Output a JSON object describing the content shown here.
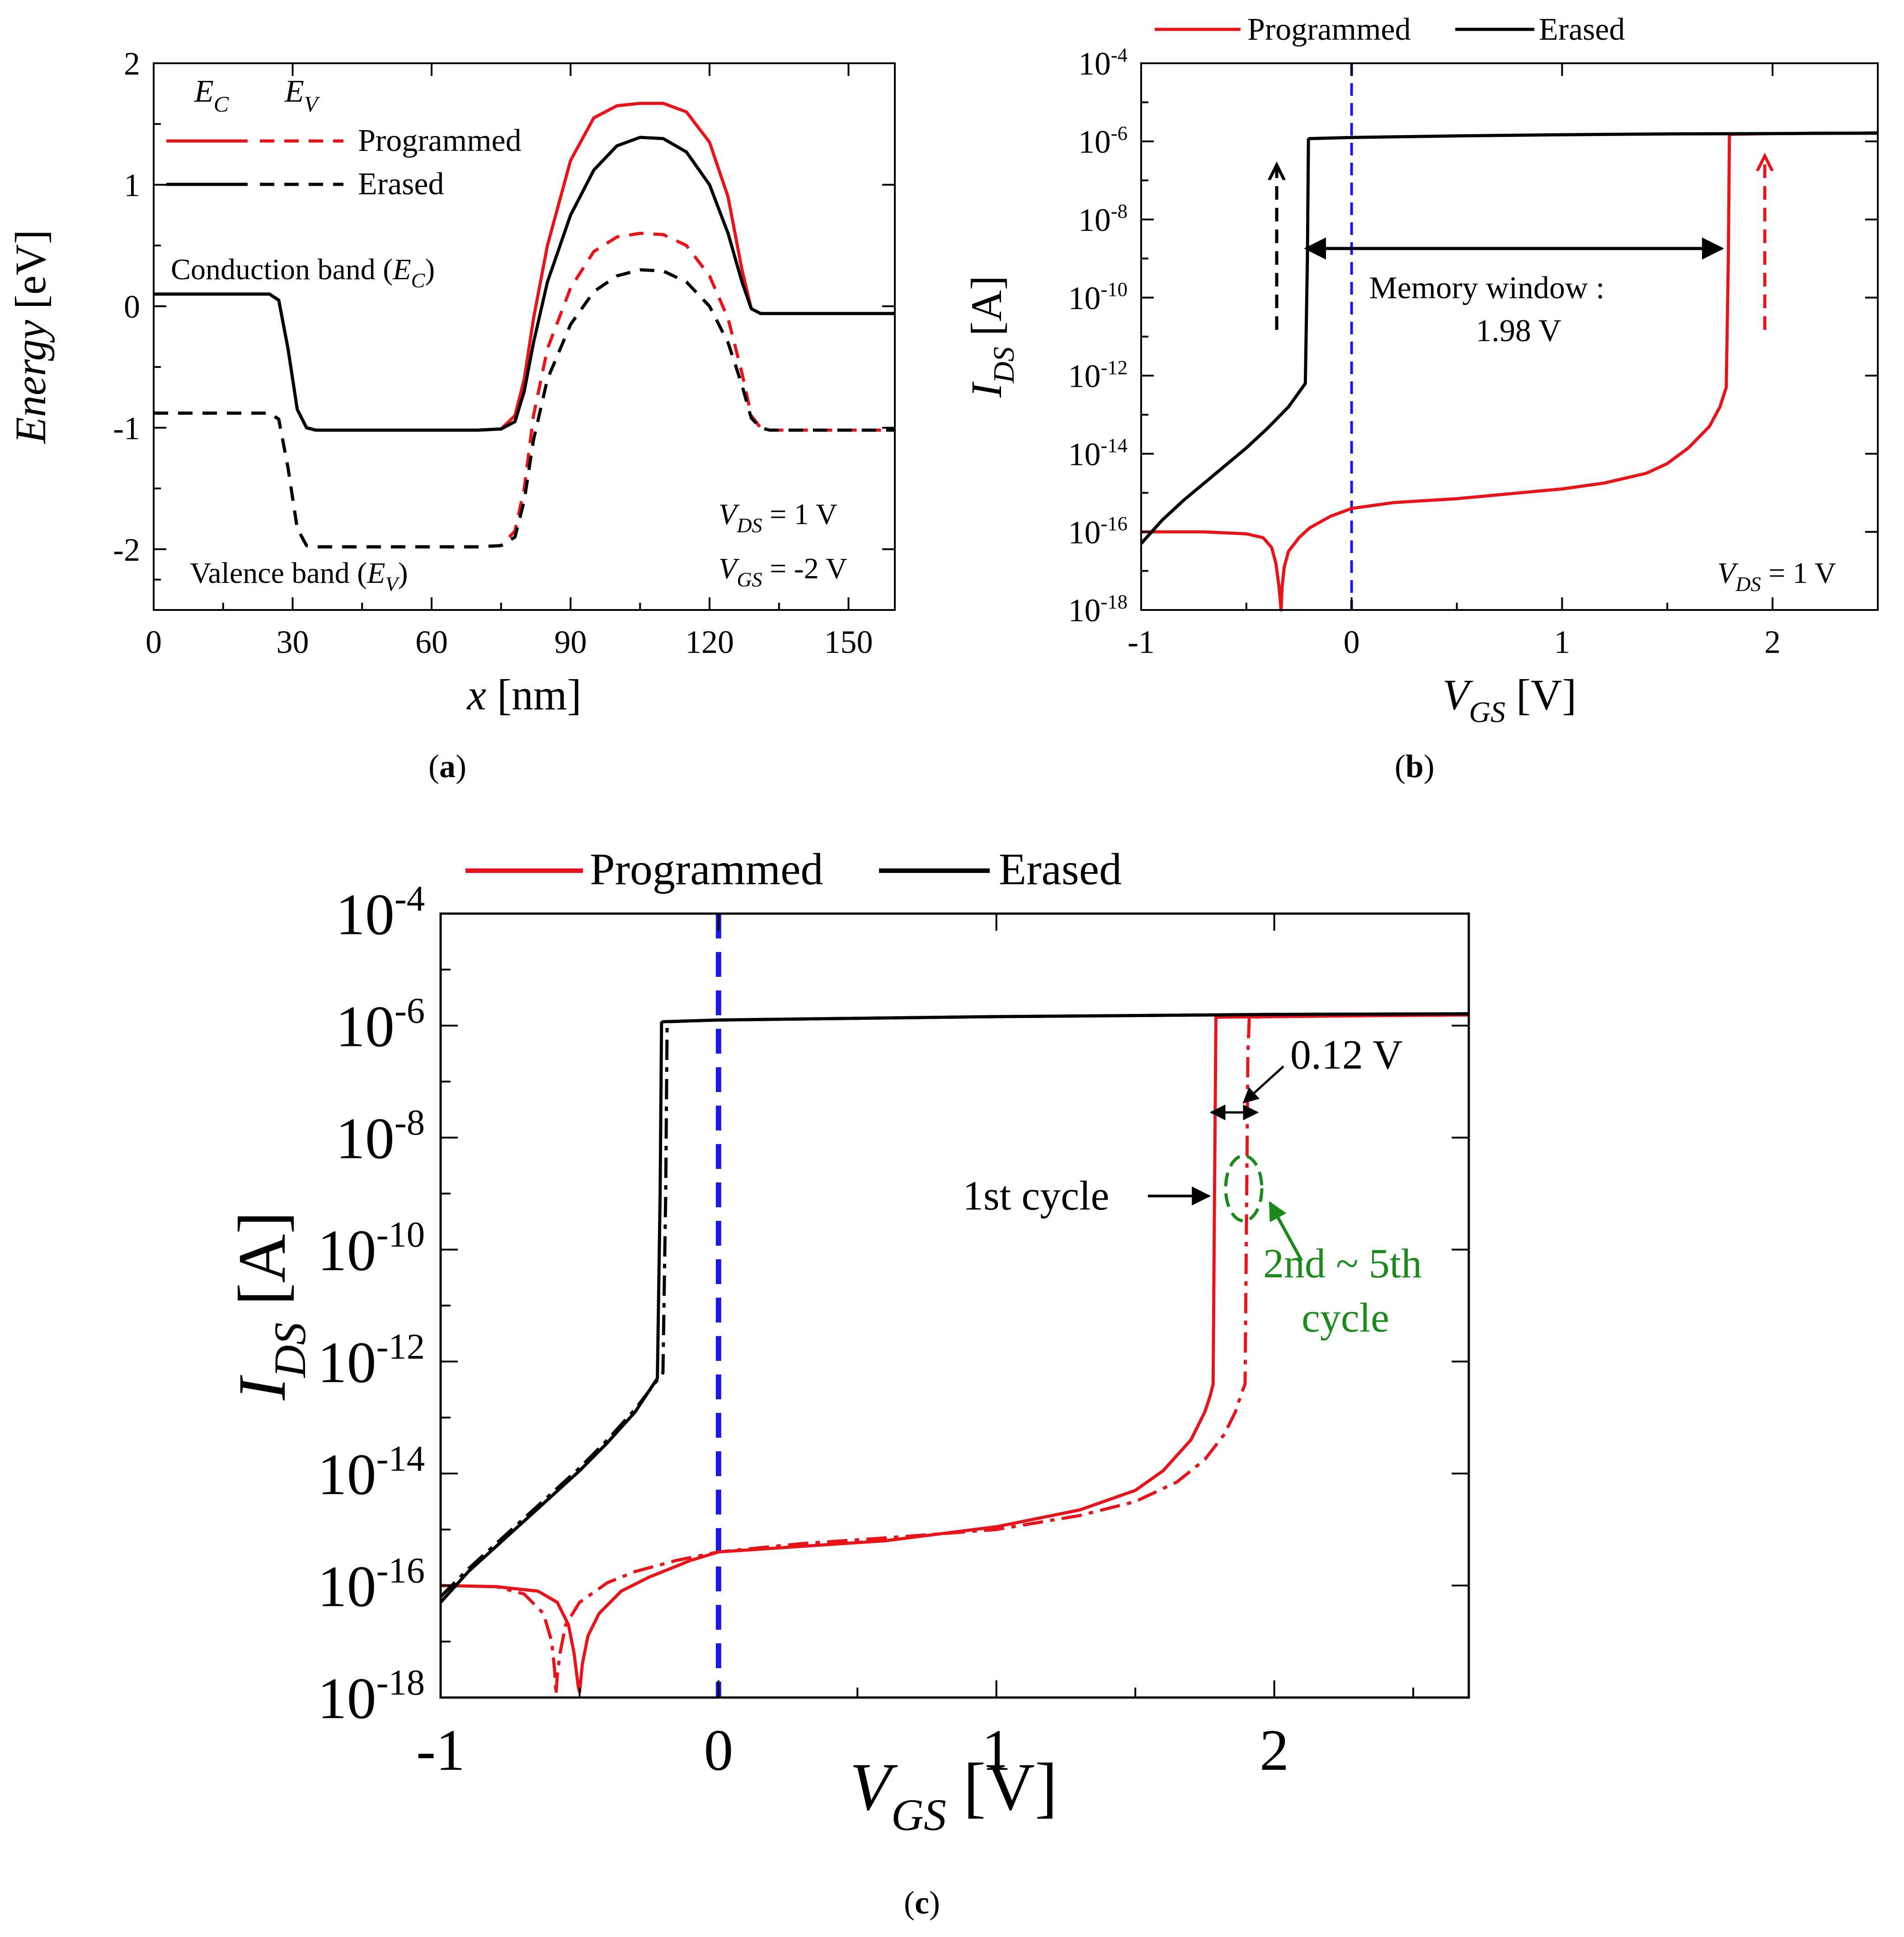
{
  "chart_data": [
    {
      "id": "a",
      "type": "line",
      "caption": "a",
      "xlabel": "x",
      "xlabel_unit": "[nm]",
      "ylabel": "Energy",
      "ylabel_unit": "[eV]",
      "xlim": [
        0,
        160
      ],
      "ylim": [
        -2.5,
        2
      ],
      "xticks": [
        0,
        30,
        60,
        90,
        120,
        150
      ],
      "xtick_labels": [
        "0",
        "30",
        "60",
        "90",
        "120",
        "150"
      ],
      "yticks": [
        -2,
        -1,
        0,
        1,
        2
      ],
      "ytick_labels": [
        "-2",
        "-1",
        "0",
        "1",
        "2"
      ],
      "legend": {
        "header_ec": "E",
        "header_ec_sub": "C",
        "header_ev": "E",
        "header_ev_sub": "V",
        "entries": [
          "Programmed",
          "Erased"
        ]
      },
      "annotations": {
        "conduction_band": "Conduction band (",
        "conduction_sym": "E",
        "conduction_sub": "C",
        "conduction_close": ")",
        "valence_band": "Valence band (",
        "valence_sym": "E",
        "valence_sub": "V",
        "valence_close": ")",
        "vds_sym": "V",
        "vds_sub": "DS",
        "vds_val": " = 1 V",
        "vgs_sym": "V",
        "vgs_sub": "GS",
        "vgs_val": " = -2 V"
      },
      "series": [
        {
          "name": "Programmed E_C",
          "color": "#e8141b",
          "dash": "solid",
          "x": [
            0,
            25,
            27,
            29,
            31,
            33,
            35,
            45,
            60,
            70,
            75,
            78,
            80,
            82,
            85,
            90,
            95,
            100,
            105,
            110,
            115,
            120,
            124,
            127,
            129,
            131,
            133,
            140,
            150,
            160
          ],
          "y": [
            0.1,
            0.1,
            0.05,
            -0.35,
            -0.85,
            -1.0,
            -1.02,
            -1.02,
            -1.02,
            -1.02,
            -1.01,
            -0.9,
            -0.6,
            -0.1,
            0.5,
            1.2,
            1.55,
            1.65,
            1.67,
            1.67,
            1.6,
            1.35,
            0.9,
            0.3,
            -0.02,
            -0.06,
            -0.06,
            -0.06,
            -0.06,
            -0.06
          ]
        },
        {
          "name": "Programmed E_V",
          "color": "#e8141b",
          "dash": "dashed",
          "x": [
            0,
            25,
            27,
            29,
            31,
            33,
            35,
            45,
            60,
            70,
            75,
            78,
            80,
            82,
            85,
            90,
            95,
            100,
            105,
            110,
            115,
            120,
            124,
            127,
            129,
            131,
            133,
            140,
            150,
            160
          ],
          "y": [
            -0.88,
            -0.88,
            -0.93,
            -1.33,
            -1.83,
            -1.97,
            -1.98,
            -1.98,
            -1.98,
            -1.98,
            -1.97,
            -1.85,
            -1.5,
            -0.9,
            -0.35,
            0.15,
            0.45,
            0.57,
            0.6,
            0.59,
            0.5,
            0.25,
            -0.1,
            -0.55,
            -0.9,
            -1.0,
            -1.02,
            -1.02,
            -1.02,
            -1.02
          ]
        },
        {
          "name": "Erased E_C",
          "color": "#000000",
          "dash": "solid",
          "x": [
            0,
            25,
            27,
            29,
            31,
            33,
            35,
            45,
            60,
            70,
            75,
            78,
            80,
            82,
            85,
            90,
            95,
            100,
            105,
            110,
            115,
            120,
            124,
            127,
            129,
            131,
            133,
            140,
            150,
            160
          ],
          "y": [
            0.1,
            0.1,
            0.05,
            -0.35,
            -0.85,
            -1.0,
            -1.02,
            -1.02,
            -1.02,
            -1.02,
            -1.01,
            -0.95,
            -0.7,
            -0.3,
            0.2,
            0.75,
            1.12,
            1.32,
            1.39,
            1.38,
            1.27,
            1.0,
            0.6,
            0.2,
            -0.02,
            -0.06,
            -0.06,
            -0.06,
            -0.06,
            -0.06
          ]
        },
        {
          "name": "Erased E_V",
          "color": "#000000",
          "dash": "dashed",
          "x": [
            0,
            25,
            27,
            29,
            31,
            33,
            35,
            45,
            60,
            70,
            75,
            78,
            80,
            82,
            85,
            90,
            95,
            100,
            105,
            110,
            115,
            120,
            124,
            127,
            129,
            131,
            133,
            140,
            150,
            160
          ],
          "y": [
            -0.88,
            -0.88,
            -0.93,
            -1.33,
            -1.83,
            -1.97,
            -1.98,
            -1.98,
            -1.98,
            -1.98,
            -1.97,
            -1.9,
            -1.6,
            -1.1,
            -0.6,
            -0.15,
            0.12,
            0.25,
            0.3,
            0.29,
            0.2,
            0.0,
            -0.3,
            -0.65,
            -0.92,
            -1.0,
            -1.02,
            -1.02,
            -1.02,
            -1.02
          ]
        }
      ]
    },
    {
      "id": "b",
      "type": "line",
      "caption": "b",
      "xlabel": "V",
      "xlabel_sub": "GS",
      "xlabel_unit": "[V]",
      "ylabel": "I",
      "ylabel_sub": "DS",
      "ylabel_unit": "[A]",
      "xlim": [
        -1,
        2.5
      ],
      "ylim_log10": [
        -18,
        -4
      ],
      "xticks": [
        -1,
        0,
        1,
        2
      ],
      "xtick_labels": [
        "-1",
        "0",
        "1",
        "2"
      ],
      "yticks_log10": [
        -18,
        -16,
        -14,
        -12,
        -10,
        -8,
        -6,
        -4
      ],
      "ytick_base": "10",
      "ytick_exponents": [
        "-18",
        "-16",
        "-14",
        "-12",
        "-10",
        "-8",
        "-6",
        "-4"
      ],
      "legend": {
        "entries": [
          "Programmed",
          "Erased"
        ],
        "position": "top"
      },
      "annotations": {
        "memory_window": "Memory window :",
        "memory_value": "1.98 V",
        "vds_sym": "V",
        "vds_sub": "DS",
        "vds_val": " = 1 V"
      },
      "reference_line_x": 0,
      "series": [
        {
          "name": "Programmed",
          "color": "#e8141b",
          "x": [
            -1,
            -0.7,
            -0.5,
            -0.42,
            -0.38,
            -0.36,
            -0.345,
            -0.335,
            -0.33,
            -0.32,
            -0.3,
            -0.25,
            -0.2,
            -0.1,
            0,
            0.2,
            0.5,
            0.8,
            1.0,
            1.2,
            1.4,
            1.5,
            1.6,
            1.7,
            1.75,
            1.78,
            1.79,
            1.795,
            1.8,
            1.9,
            2.0,
            2.1,
            2.2,
            2.3,
            2.4,
            2.5
          ],
          "y_log10": [
            -16.0,
            -16.0,
            -16.05,
            -16.15,
            -16.4,
            -16.8,
            -17.4,
            -18.0,
            -17.4,
            -16.9,
            -16.5,
            -16.15,
            -15.9,
            -15.6,
            -15.4,
            -15.25,
            -15.15,
            -15.0,
            -14.9,
            -14.75,
            -14.5,
            -14.25,
            -13.85,
            -13.3,
            -12.8,
            -12.3,
            -9.0,
            -5.85,
            -5.82,
            -5.81,
            -5.8,
            -5.8,
            -5.79,
            -5.79,
            -5.79,
            -5.78
          ]
        },
        {
          "name": "Erased",
          "color": "#000000",
          "x": [
            -1,
            -0.9,
            -0.8,
            -0.7,
            -0.6,
            -0.5,
            -0.4,
            -0.3,
            -0.22,
            -0.21,
            -0.205,
            -0.2,
            0,
            0.5,
            1.0,
            1.5,
            2.0,
            2.5
          ],
          "y_log10": [
            -16.3,
            -15.7,
            -15.2,
            -14.75,
            -14.3,
            -13.85,
            -13.35,
            -12.8,
            -12.2,
            -9.0,
            -5.95,
            -5.93,
            -5.9,
            -5.86,
            -5.83,
            -5.81,
            -5.8,
            -5.79
          ]
        }
      ]
    },
    {
      "id": "c",
      "type": "line",
      "caption": "c",
      "xlabel": "V",
      "xlabel_sub": "GS",
      "xlabel_unit": "[V]",
      "ylabel": "I",
      "ylabel_sub": "DS",
      "ylabel_unit": "[A]",
      "xlim": [
        -1,
        2.7
      ],
      "ylim_log10": [
        -18,
        -4
      ],
      "xticks": [
        -1,
        0,
        1,
        2
      ],
      "xtick_labels": [
        "-1",
        "0",
        "1",
        "2"
      ],
      "yticks_log10": [
        -18,
        -16,
        -14,
        -12,
        -10,
        -8,
        -6,
        -4
      ],
      "ytick_base": "10",
      "ytick_exponents": [
        "-18",
        "-16",
        "-14",
        "-12",
        "-10",
        "-8",
        "-6",
        "-4"
      ],
      "legend": {
        "entries": [
          "Programmed",
          "Erased"
        ],
        "position": "top"
      },
      "annotations": {
        "shift": "0.12 V",
        "first_cycle": "1st cycle",
        "later_cycles_line1": "2nd ~ 5th",
        "later_cycles_line2": "cycle",
        "green": "#1a8a1a"
      },
      "reference_line_x": 0,
      "series": [
        {
          "name": "Programmed 1st cycle",
          "color": "#e8141b",
          "dash": "solid",
          "x": [
            -1,
            -0.8,
            -0.65,
            -0.58,
            -0.54,
            -0.52,
            -0.505,
            -0.5,
            -0.49,
            -0.47,
            -0.43,
            -0.35,
            -0.25,
            -0.1,
            0,
            0.3,
            0.6,
            1.0,
            1.3,
            1.5,
            1.6,
            1.7,
            1.75,
            1.77,
            1.78,
            1.785,
            1.79,
            2.0,
            2.2,
            2.4,
            2.7
          ],
          "y_log10": [
            -16.0,
            -16.02,
            -16.1,
            -16.3,
            -16.7,
            -17.2,
            -17.8,
            -17.9,
            -17.4,
            -16.9,
            -16.5,
            -16.1,
            -15.85,
            -15.55,
            -15.4,
            -15.3,
            -15.2,
            -14.95,
            -14.65,
            -14.3,
            -13.95,
            -13.4,
            -12.9,
            -12.6,
            -12.4,
            -9.0,
            -5.85,
            -5.84,
            -5.83,
            -5.82,
            -5.81
          ]
        },
        {
          "name": "Programmed 2nd-5th cycle",
          "color": "#e8141b",
          "dash": "dashdot",
          "x": [
            -1,
            -0.8,
            -0.7,
            -0.63,
            -0.6,
            -0.59,
            -0.585,
            -0.58,
            -0.57,
            -0.55,
            -0.5,
            -0.4,
            -0.3,
            -0.15,
            0,
            0.3,
            0.6,
            1.0,
            1.3,
            1.5,
            1.65,
            1.75,
            1.82,
            1.86,
            1.88,
            1.895,
            1.9,
            1.905,
            1.91,
            2.0,
            2.2,
            2.4,
            2.7
          ],
          "y_log10": [
            -16.0,
            -16.02,
            -16.15,
            -16.5,
            -17.0,
            -17.5,
            -17.95,
            -17.6,
            -17.2,
            -16.7,
            -16.3,
            -15.95,
            -15.75,
            -15.55,
            -15.4,
            -15.25,
            -15.15,
            -15.0,
            -14.75,
            -14.5,
            -14.15,
            -13.75,
            -13.3,
            -12.9,
            -12.6,
            -12.4,
            -9.5,
            -6.5,
            -5.85,
            -5.84,
            -5.83,
            -5.82,
            -5.81
          ]
        },
        {
          "name": "Erased",
          "color": "#000000",
          "dash": "solid",
          "x": [
            -1,
            -0.9,
            -0.8,
            -0.7,
            -0.6,
            -0.5,
            -0.4,
            -0.3,
            -0.22,
            -0.21,
            -0.205,
            -0.2,
            0,
            0.5,
            1.0,
            1.5,
            2.0,
            2.7
          ],
          "y_log10": [
            -16.3,
            -15.75,
            -15.3,
            -14.85,
            -14.4,
            -13.95,
            -13.45,
            -12.9,
            -12.3,
            -9.0,
            -5.95,
            -5.93,
            -5.9,
            -5.87,
            -5.84,
            -5.82,
            -5.8,
            -5.79
          ]
        },
        {
          "name": "Erased 2nd-5th cycle",
          "color": "#000000",
          "dash": "dashdot",
          "x": [
            -1,
            -0.9,
            -0.8,
            -0.7,
            -0.6,
            -0.5,
            -0.4,
            -0.3,
            -0.2,
            -0.19,
            -0.185,
            -0.18,
            0,
            0.5,
            1.0,
            1.5,
            2.0,
            2.7
          ],
          "y_log10": [
            -16.2,
            -15.7,
            -15.25,
            -14.8,
            -14.35,
            -13.9,
            -13.4,
            -12.85,
            -12.2,
            -9.0,
            -6.0,
            -5.93,
            -5.9,
            -5.87,
            -5.84,
            -5.82,
            -5.8,
            -5.79
          ]
        }
      ]
    }
  ]
}
